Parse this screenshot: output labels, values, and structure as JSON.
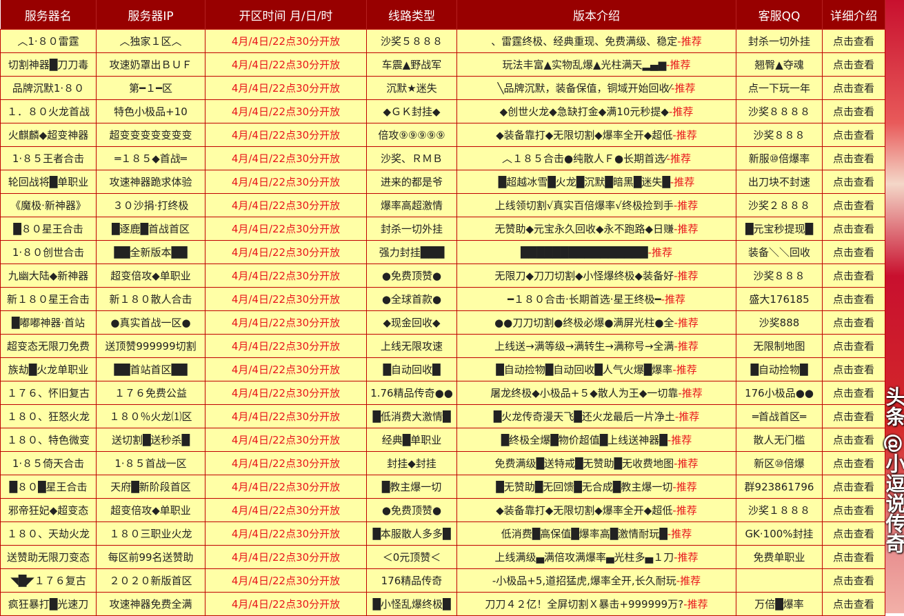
{
  "headers": [
    "服务器名",
    "服务器IP",
    "开区时间 月/日/时",
    "线路类型",
    "版本介绍",
    "客服QQ",
    "详细介绍"
  ],
  "recommend_suffix": "-推荐",
  "rows": [
    [
      "︿1·８０雷霆",
      "︿独家１区︿",
      "4月/4日/22点30分开放",
      "沙奖５８８８",
      "、雷霆终极、经典重现、免费满级、稳定",
      "封杀一切外挂",
      "点击查看"
    ],
    [
      "切割神器█刀刀毒",
      "攻速奶罩出ＢＵＦ",
      "4月/4日/22点30分开放",
      "车震▲野战军",
      "玩法丰富▲实物乱爆▲光柱满天▂▄▆",
      "翘臀▲夺魂",
      "点击查看"
    ],
    [
      "品牌沉默1·８０",
      "第━１━区",
      "4月/4日/22点30分开放",
      "沉默★迷失",
      "╲品牌沉默，装备保值，铜域开始回收⁄",
      "点一下玩一年",
      "点击查看"
    ],
    [
      "１．８０火龙首战",
      "特色小极品+10",
      "4月/4日/22点30分开放",
      "◆ＧＫ封挂◆",
      "◆创世火龙◆急缺打金◆满10元秒提◆",
      "沙奖８８８８",
      "点击查看"
    ],
    [
      "火麒麟◆超变神器",
      "超变变变变变变变",
      "4月/4日/22点30分开放",
      "倍攻⑨⑨⑨⑨⑨",
      "◆装备靠打◆无限切割◆爆率全开◆超低",
      "沙奖８８８",
      "点击查看"
    ],
    [
      "1·８５王者合击",
      "═１８５◆首战═",
      "4月/4日/22点30分开放",
      "沙奖、ＲＭＢ",
      "︿１８５合击●纯散人Ｆ●长期首选⁄",
      "新服⑩倍爆率",
      "点击查看"
    ],
    [
      "轮回战将█单职业",
      "攻速神器跪求体验",
      "4月/4日/22点30分开放",
      "进来的都是爷",
      "█超越冰雪█火龙█沉默█暗黑█迷失█",
      "出刀块不封速",
      "点击查看"
    ],
    [
      "《魔极·新神器》",
      "３０沙捐·打终极",
      "4月/4日/22点30分开放",
      "爆率高超激情",
      "上线领切割√真实百倍爆率√终极捡到手",
      "沙奖２８８８",
      "点击查看"
    ],
    [
      "█８０星王合击",
      "█逐鹿█首战首区",
      "4月/4日/22点30分开放",
      "封杀一切外挂",
      "无赞助◆元宝永久回收◆永不跑路◆日赚",
      "█元宝秒提现█",
      "点击查看"
    ],
    [
      "1·８０创世合击",
      "██全新版本██",
      "4月/4日/22点30分开放",
      "强力封挂███",
      "████████████████",
      "装备＼＼回收",
      "点击查看"
    ],
    [
      "九幽大陆◆新神器",
      "超变倍攻◆单职业",
      "4月/4日/22点30分开放",
      "●免费顶赞●",
      "无限刀◆刀刀切割◆小怪爆终极◆装备好",
      "沙奖８８８",
      "点击查看"
    ],
    [
      "新１８０星王合击",
      "新１８０散人合击",
      "4月/4日/22点30分开放",
      "●全球首款●",
      "━１８０合击·长期首选·星王终极━",
      "盛大176185",
      "点击查看"
    ],
    [
      "█嘟嘟神器·首站",
      "●真实首战一区●",
      "4月/4日/22点30分开放",
      "◆现金回收◆",
      "●●刀刀切割●终极必爆●满屏光柱●全",
      "沙奖888",
      "点击查看"
    ],
    [
      "超变态无限刀免费",
      "送顶赞999999切割",
      "4月/4日/22点30分开放",
      "上线无限攻速",
      "上线送→满等级→满转生→满称号→全满",
      "无限制地图",
      "点击查看"
    ],
    [
      "族劫█火龙单职业",
      "██首站首区██",
      "4月/4日/22点30分开放",
      "█自动回收█",
      "█自动捡物█自动回收█人气火爆█爆率",
      "█自动捡物█",
      "点击查看"
    ],
    [
      "１７６、怀旧复古",
      "１７６免费公益",
      "4月/4日/22点30分开放",
      "1.76精品传奇●●",
      "屠龙终极◆小极品+５◆散人为王◆一切靠",
      "176小极品●●",
      "点击查看"
    ],
    [
      "１８０、狂怒火龙",
      "１８０％火龙⑴区",
      "4月/4日/22点30分开放",
      "█低消费大激情█",
      "█火龙传奇漫天飞█还火龙最后一片净土",
      "═首战首区═",
      "点击查看"
    ],
    [
      "１８０、特色微变",
      "送切割█送秒杀█",
      "4月/4日/22点30分开放",
      "经典█单职业",
      "█终极全爆█物价超值█上线送神器█",
      "散人无门槛",
      "点击查看"
    ],
    [
      "1·８５倚天合击",
      "1·８５首战一区",
      "4月/4日/22点30分开放",
      "封挂◆封挂",
      "免费满级█送特戒█无赞助█无收费地图",
      "新区⑩倍爆",
      "点击查看"
    ],
    [
      "█８０█星王合击",
      "天府█新阶段首区",
      "4月/4日/22点30分开放",
      "█教主爆一切",
      "█无赞助█无回馈█无合成█教主爆一切",
      "群923861796",
      "点击查看"
    ],
    [
      "邪帝狂妃◆超变态",
      "超变倍攻◆单职业",
      "4月/4日/22点30分开放",
      "●免费顶赞●",
      "◆装备靠打◆无限切割◆爆率全开◆超低",
      "沙奖１８８８",
      "点击查看"
    ],
    [
      "１８０、天劫火龙",
      "１８０三职业火龙",
      "4月/4日/22点30分开放",
      "█本服散人多多█",
      "低消费█高保值█爆率高█激情耐玩█",
      "GK·100%封挂",
      "点击查看"
    ],
    [
      "送赞助无限刀变态",
      "每区前99名送赞助",
      "4月/4日/22点30分开放",
      "＜0元顶赞＜",
      "上线满级▄满倍攻满爆率▄光柱多▄１刀",
      "免费单职业",
      "点击查看"
    ],
    [
      "◥█◤１７６复古",
      "２０２０新版首区",
      "4月/4日/22点30分开放",
      "176精品传奇",
      "-小极品+5,道招猛虎,爆率全开,长久耐玩",
      "",
      "点击查看"
    ],
    [
      "疯狂暴打█光速刀",
      "攻速神器免费全满",
      "4月/4日/22点30分开放",
      "█小怪乱爆终极█",
      "刀刀４２亿！全屏切割Ｘ暴击+999999万?",
      "万倍█爆率",
      "点击查看"
    ]
  ],
  "watermark": "头条 @小逗说传奇"
}
